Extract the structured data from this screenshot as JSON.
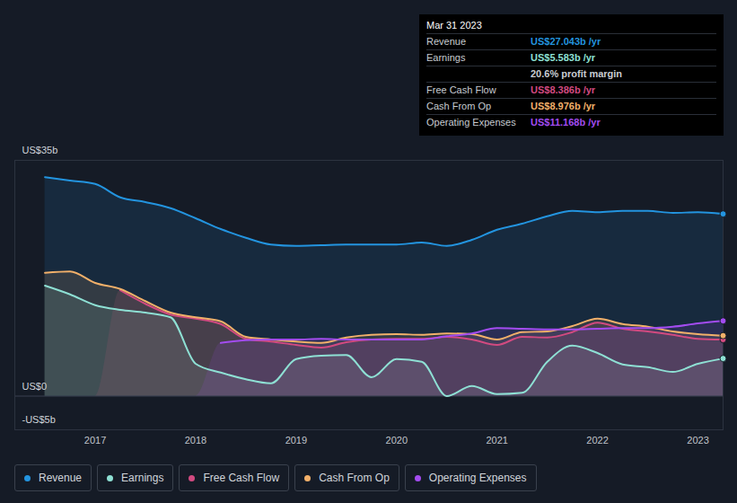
{
  "chart_data": {
    "type": "line",
    "x": [
      2016.5,
      2016.75,
      2017,
      2017.25,
      2017.5,
      2017.75,
      2018,
      2018.25,
      2018.5,
      2018.75,
      2019,
      2019.25,
      2019.5,
      2019.75,
      2020,
      2020.25,
      2020.5,
      2020.75,
      2021,
      2021.25,
      2021.5,
      2021.75,
      2022,
      2022.25,
      2022.5,
      2022.75,
      2023,
      2023.25
    ],
    "xlim": [
      2016.2,
      2023.25
    ],
    "xticks": [
      2017,
      2018,
      2019,
      2020,
      2021,
      2022,
      2023
    ],
    "ylim": [
      -5,
      35
    ],
    "yticks": [
      {
        "value": 35,
        "label": "US$35b"
      },
      {
        "value": 0,
        "label": "US$0"
      },
      {
        "value": -5,
        "label": "-US$5b"
      }
    ],
    "grid": true,
    "legend": "bottom",
    "series": [
      {
        "name": "Revenue",
        "color": "#2394df",
        "values": [
          32.5,
          32.0,
          31.5,
          29.5,
          28.8,
          27.9,
          26.4,
          24.8,
          23.5,
          22.5,
          22.3,
          22.4,
          22.5,
          22.5,
          22.5,
          22.8,
          22.3,
          23.2,
          24.7,
          25.6,
          26.7,
          27.5,
          27.3,
          27.5,
          27.5,
          27.2,
          27.3,
          27.043
        ]
      },
      {
        "name": "Earnings",
        "color": "#8ee0d4",
        "values": [
          16.4,
          15.1,
          13.5,
          12.8,
          12.4,
          11.7,
          4.8,
          3.5,
          2.5,
          1.9,
          5.5,
          6.0,
          6.1,
          2.8,
          5.5,
          5.1,
          0,
          1.5,
          0.3,
          0.5,
          5.1,
          7.5,
          6.4,
          4.7,
          4.3,
          3.6,
          4.8,
          5.583
        ]
      },
      {
        "name": "Free Cash Flow",
        "color": "#d24a80",
        "values": [
          null,
          null,
          null,
          15.7,
          13.7,
          12.1,
          11.5,
          10.7,
          8.5,
          8.1,
          7.6,
          7.2,
          8.0,
          8.4,
          8.5,
          8.5,
          8.8,
          8.4,
          7.6,
          8.8,
          8.7,
          9.5,
          10.9,
          10.0,
          9.6,
          9.1,
          8.5,
          8.386
        ]
      },
      {
        "name": "Cash From Op",
        "color": "#f2b06a",
        "values": [
          18.3,
          18.5,
          16.8,
          15.9,
          14.1,
          12.4,
          11.7,
          11.1,
          8.8,
          8.4,
          8.1,
          7.9,
          8.7,
          9.1,
          9.2,
          9.1,
          9.3,
          9.2,
          8.4,
          9.5,
          9.6,
          10.4,
          11.5,
          10.7,
          10.3,
          9.6,
          9.2,
          8.976
        ]
      },
      {
        "name": "Operating Expenses",
        "color": "#a34cf0",
        "values": [
          null,
          null,
          null,
          null,
          null,
          null,
          null,
          7.9,
          8.3,
          8.4,
          8.4,
          8.5,
          8.4,
          8.4,
          8.4,
          8.4,
          8.9,
          9.3,
          10.1,
          10.0,
          9.9,
          9.9,
          10.0,
          10.1,
          10.1,
          10.3,
          10.8,
          11.168
        ]
      }
    ],
    "tooltip": {
      "title": "Mar 31 2023",
      "rows": [
        {
          "label": "Revenue",
          "value": "US$27.043b /yr"
        },
        {
          "label": "Earnings",
          "value": "US$5.583b /yr"
        },
        {
          "value": "20.6% profit margin"
        },
        {
          "label": "Free Cash Flow",
          "value": "US$8.386b /yr"
        },
        {
          "label": "Cash From Op",
          "value": "US$8.976b /yr"
        },
        {
          "label": "Operating Expenses",
          "value": "US$11.168b /yr"
        }
      ]
    }
  }
}
